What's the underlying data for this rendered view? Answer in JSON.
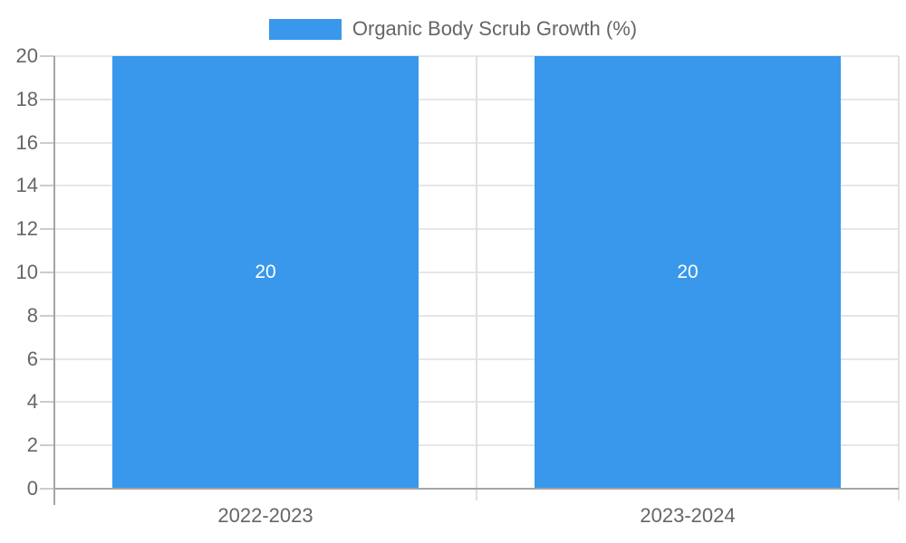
{
  "legend": {
    "label": "Organic Body Scrub Growth (%)"
  },
  "chart_data": {
    "type": "bar",
    "title": "Organic Body Scrub Growth (%)",
    "legend_position": "top",
    "categories": [
      "2022-2023",
      "2023-2024"
    ],
    "series": [
      {
        "name": "Organic Body Scrub Growth (%)",
        "values": [
          20,
          20
        ],
        "value_labels": [
          "20",
          "20"
        ]
      }
    ],
    "xlabel": "",
    "ylabel": "",
    "ylim": [
      0,
      20
    ],
    "yticks": [
      0,
      2,
      4,
      6,
      8,
      10,
      12,
      14,
      16,
      18,
      20
    ],
    "grid": true,
    "bar_value_labels_shown": true
  },
  "style": {
    "bar_color": "#3998eb",
    "value_label_color": "#ffffff",
    "text_color": "#666666",
    "grid_color": "#e6e6e6",
    "grid_color_vertical": "#e0e0e0",
    "tick_color": "#cccccc",
    "axis_color": "#a5a5a5",
    "background": "#ffffff"
  }
}
